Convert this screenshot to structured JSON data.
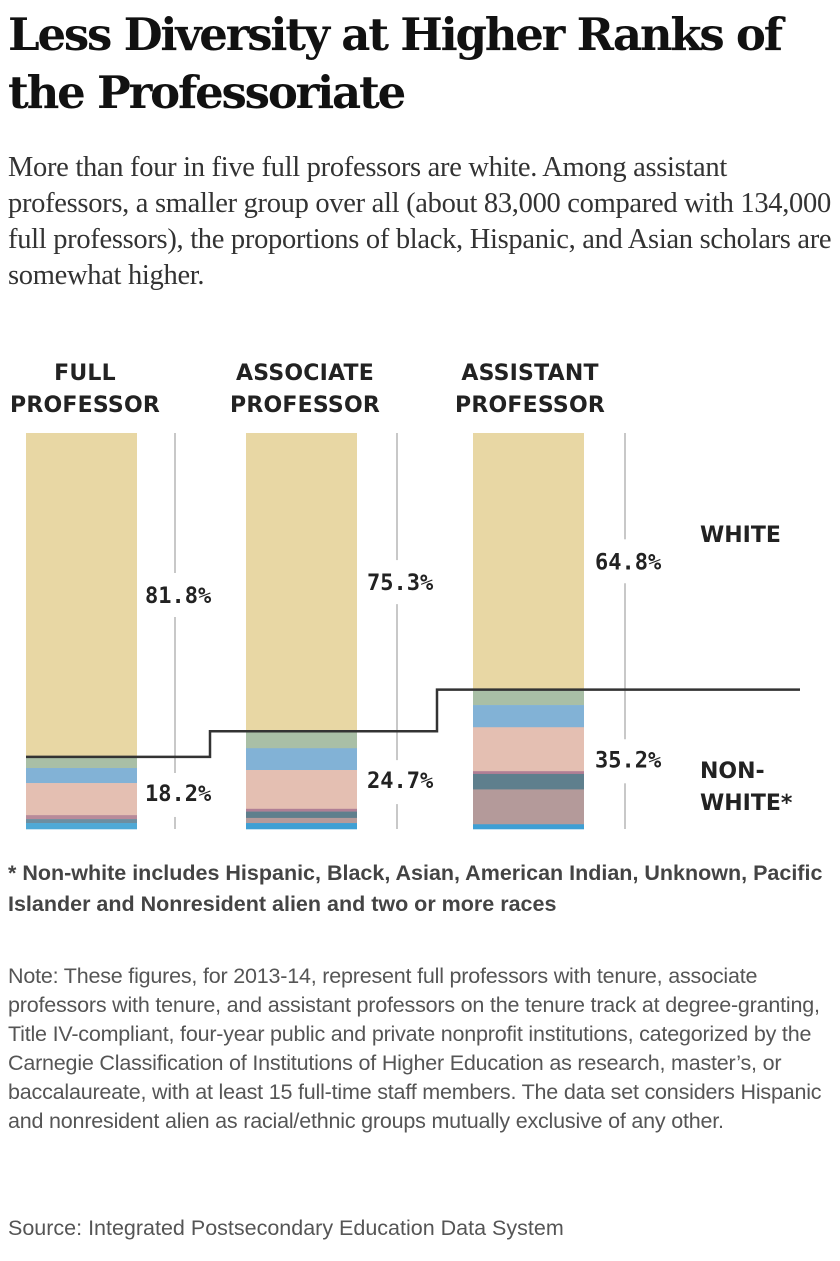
{
  "title": "Less Diversity at Higher Ranks of the Professoriate",
  "subtitle": "More than four in five full professors are white. Among assistant professors, a smaller group over all (about 83,000 compared with 134,000 full professors), the proportions of black, Hispanic, and Asian scholars are somewhat higher.",
  "footnote": "* Non-white includes Hispanic, Black, Asian, American Indian, Unknown, Pacific Islander and Nonresident alien and two or more races",
  "note": "Note: These figures, for 2013-14, represent full professors with tenure, associate professors with tenure, and assistant professors on the tenure track at degree-granting, Title IV-compliant, four-year public and private nonprofit institutions, categorized by the Carnegie Classification of Institutions of Higher Education as research, master’s, or baccalaureate, with at least 15 full-time staff members. The data set considers Hispanic and nonresident alien as racial/ethnic groups mutually exclusive of any other.",
  "source": "Source: Integrated Postsecondary Education Data System",
  "chart_data": {
    "type": "bar",
    "stacked": true,
    "title": "Less Diversity at Higher Ranks of the Professoriate",
    "categories": [
      {
        "line1": "FULL",
        "line2": "PROFESSOR"
      },
      {
        "line1": "ASSOCIATE",
        "line2": "PROFESSOR"
      },
      {
        "line1": "ASSISTANT",
        "line2": "PROFESSOR"
      }
    ],
    "ylim": [
      0,
      100
    ],
    "unit": "%",
    "grid": false,
    "series_labels": {
      "white": "WHITE",
      "nonwhite_line1": "NON-",
      "nonwhite_line2": "WHITE*"
    },
    "white_pct": [
      81.8,
      75.3,
      64.8
    ],
    "white_labels": [
      "81.8%",
      "75.3%",
      "64.8%"
    ],
    "nonwhite_pct": [
      18.2,
      24.7,
      35.2
    ],
    "nonwhite_labels": [
      "18.2%",
      "24.7%",
      "35.2%"
    ],
    "colors": {
      "white": "#e8d7a4",
      "step_line": "#333333",
      "guide_line": "#c8c8c8"
    },
    "nonwhite_segments": [
      {
        "category": "FULL PROFESSOR",
        "segments": [
          {
            "color": "#a9bfa6",
            "pct": 2.8
          },
          {
            "color": "#82b2d6",
            "pct": 3.8
          },
          {
            "color": "#e4bfb2",
            "pct": 8.1
          },
          {
            "color": "#b88a9a",
            "pct": 1.0
          },
          {
            "color": "#6d8ea0",
            "pct": 1.0
          },
          {
            "color": "#4fa9d6",
            "pct": 1.5
          }
        ]
      },
      {
        "category": "ASSOCIATE PROFESSOR",
        "segments": [
          {
            "color": "#a9bfa6",
            "pct": 4.3
          },
          {
            "color": "#82b2d6",
            "pct": 5.5
          },
          {
            "color": "#e4bfb2",
            "pct": 9.8
          },
          {
            "color": "#b07f95",
            "pct": 0.7
          },
          {
            "color": "#5f7f8d",
            "pct": 1.6
          },
          {
            "color": "#b59a9a",
            "pct": 1.3
          },
          {
            "color": "#3e9fd4",
            "pct": 1.5
          }
        ]
      },
      {
        "category": "ASSISTANT PROFESSOR",
        "segments": [
          {
            "color": "#a9bfa6",
            "pct": 3.9
          },
          {
            "color": "#82b2d6",
            "pct": 5.6
          },
          {
            "color": "#e4bfb2",
            "pct": 11.1
          },
          {
            "color": "#b07f95",
            "pct": 0.7
          },
          {
            "color": "#5f7f8d",
            "pct": 3.9
          },
          {
            "color": "#b49a9a",
            "pct": 8.8
          },
          {
            "color": "#3e9fd4",
            "pct": 1.2
          }
        ]
      }
    ]
  }
}
